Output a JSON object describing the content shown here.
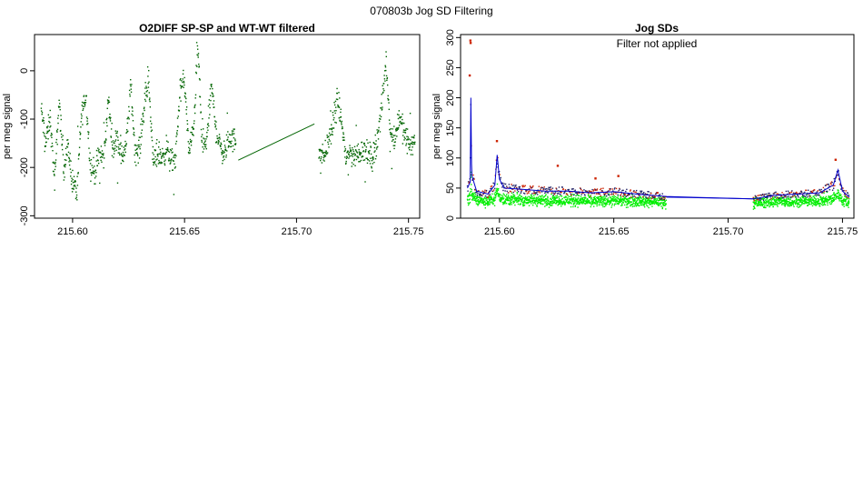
{
  "figure": {
    "title": "070803b   Jog SD Filtering",
    "colors": {
      "background": "#ffffff",
      "axis": "#000000",
      "signal": "#006400",
      "sd_line": "#0000cc",
      "sd_points_red": "#cc2200",
      "sd_points_green": "#00ee00"
    }
  },
  "chart_data": [
    {
      "type": "scatter",
      "title": "O2DIFF SP-SP and WT-WT filtered",
      "xlabel": "",
      "ylabel": "per meg signal",
      "xlim": [
        215.583,
        215.755
      ],
      "ylim": [
        -305,
        75
      ],
      "x_ticks": [
        215.6,
        215.65,
        215.7,
        215.75
      ],
      "x_tick_labels": [
        "215.60",
        "215.65",
        "215.70",
        "215.75"
      ],
      "y_ticks": [
        0,
        -100,
        -200,
        -300
      ],
      "y_tick_labels": [
        "0",
        "-100",
        "-200",
        "-300"
      ],
      "grid": false,
      "segments": [
        {
          "name": "",
          "x_range": [
            215.586,
            215.673
          ]
        },
        {
          "name": "",
          "x_range": [
            215.71,
            215.753
          ]
        }
      ],
      "gap_line": {
        "from": [
          215.674,
          -185
        ],
        "to": [
          215.708,
          -110
        ]
      },
      "trend": {
        "x": [
          215.586,
          215.588,
          215.59,
          215.592,
          215.594,
          215.596,
          215.598,
          215.6,
          215.602,
          215.604,
          215.606,
          215.608,
          215.61,
          215.612,
          215.614,
          215.616,
          215.618,
          215.62,
          215.622,
          215.624,
          215.626,
          215.628,
          215.63,
          215.632,
          215.634,
          215.636,
          215.638,
          215.64,
          215.642,
          215.644,
          215.646,
          215.648,
          215.65,
          215.652,
          215.654,
          215.656,
          215.658,
          215.66,
          215.662,
          215.664,
          215.666,
          215.668,
          215.67,
          215.673,
          215.71,
          215.712,
          215.714,
          215.716,
          215.718,
          215.72,
          215.722,
          215.724,
          215.726,
          215.728,
          215.73,
          215.732,
          215.734,
          215.736,
          215.738,
          215.74,
          215.742,
          215.744,
          215.746,
          215.748,
          215.75,
          215.753
        ],
        "y": [
          -80,
          -150,
          -100,
          -230,
          -60,
          -200,
          -160,
          -230,
          -250,
          -90,
          -50,
          -200,
          -210,
          -175,
          -180,
          -60,
          -160,
          -140,
          -180,
          -150,
          -30,
          -170,
          -160,
          -70,
          -20,
          -190,
          -170,
          -180,
          -160,
          -190,
          -180,
          -40,
          -20,
          -170,
          -120,
          50,
          -170,
          -140,
          -30,
          -120,
          -160,
          -170,
          -140,
          -145,
          -160,
          -180,
          -150,
          -120,
          -60,
          -100,
          -180,
          -170,
          -175,
          -170,
          -160,
          -175,
          -180,
          -140,
          -80,
          20,
          -130,
          -140,
          -90,
          -130,
          -150,
          -145
        ]
      },
      "spread": 28,
      "points_per_segment_unit": 9000
    },
    {
      "type": "line",
      "title": "Jog SDs",
      "annotation": "Filter not applied",
      "xlabel": "",
      "ylabel": "per meg signal",
      "xlim": [
        215.583,
        215.755
      ],
      "ylim": [
        0,
        305
      ],
      "x_ticks": [
        215.6,
        215.65,
        215.7,
        215.75
      ],
      "x_tick_labels": [
        "215.60",
        "215.65",
        "215.70",
        "215.75"
      ],
      "y_ticks": [
        0,
        50,
        100,
        150,
        200,
        250,
        300
      ],
      "y_tick_labels": [
        "0",
        "50",
        "100",
        "150",
        "200",
        "250",
        "300"
      ],
      "grid": false,
      "sd_trend": {
        "x": [
          215.586,
          215.5872,
          215.5875,
          215.5878,
          215.588,
          215.59,
          215.595,
          215.598,
          215.599,
          215.6,
          215.602,
          215.61,
          215.62,
          215.63,
          215.64,
          215.65,
          215.66,
          215.673,
          215.711,
          215.72,
          215.73,
          215.74,
          215.746,
          215.748,
          215.75,
          215.753
        ],
        "y": [
          50,
          60,
          200,
          90,
          70,
          45,
          40,
          55,
          105,
          65,
          50,
          48,
          45,
          45,
          42,
          44,
          40,
          36,
          32,
          38,
          40,
          42,
          55,
          80,
          45,
          35
        ]
      },
      "gap_line": {
        "from": [
          215.673,
          35
        ],
        "to": [
          215.711,
          32
        ]
      },
      "outliers_red": [
        {
          "x": 215.5873,
          "y": 295
        },
        {
          "x": 215.5874,
          "y": 291
        },
        {
          "x": 215.587,
          "y": 237
        },
        {
          "x": 215.5989,
          "y": 128
        },
        {
          "x": 215.6255,
          "y": 87
        },
        {
          "x": 215.652,
          "y": 70
        },
        {
          "x": 215.747,
          "y": 97
        },
        {
          "x": 215.642,
          "y": 66
        }
      ],
      "green_base": 28
    }
  ]
}
